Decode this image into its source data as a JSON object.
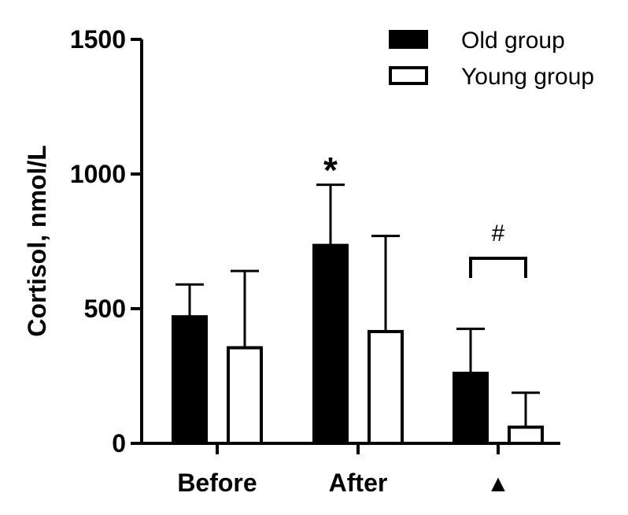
{
  "chart_data": {
    "type": "bar",
    "categories": [
      "Before",
      "After",
      "▲"
    ],
    "ylabel": "Cortisol, nmol/L",
    "xlabel": "",
    "ylim": [
      0,
      1500
    ],
    "yticks": [
      0,
      500,
      1000,
      1500
    ],
    "grid": false,
    "legend_position": "top-right",
    "series": [
      {
        "name": "Old group",
        "fill": "#000000",
        "stroke": "#000000",
        "values": [
          470,
          735,
          260
        ],
        "errors": [
          120,
          225,
          165
        ]
      },
      {
        "name": "Young group",
        "fill": "#ffffff",
        "stroke": "#000000",
        "values": [
          355,
          415,
          60
        ],
        "errors": [
          285,
          355,
          128
        ]
      }
    ],
    "annotations": {
      "star": {
        "text": "*",
        "category": "After",
        "series": "Old group"
      },
      "hash": {
        "text": "#",
        "category": "▲"
      }
    }
  }
}
